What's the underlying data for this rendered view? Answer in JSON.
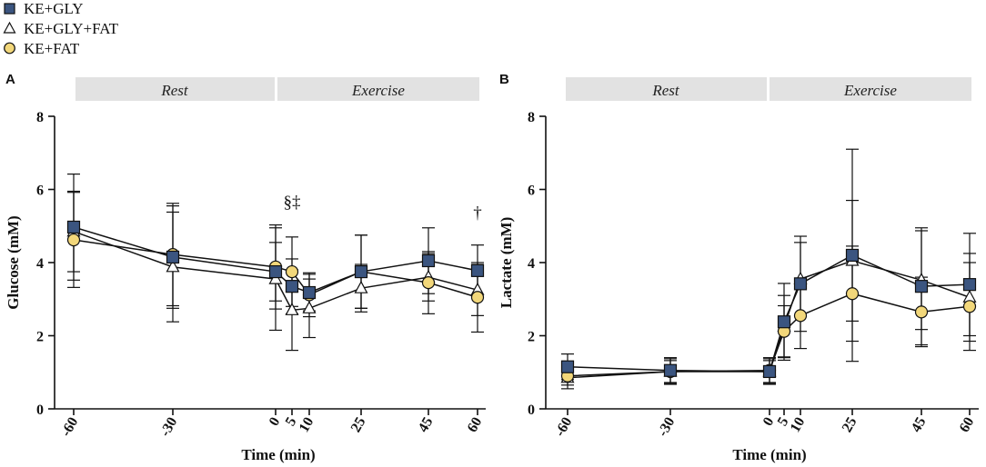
{
  "legend": {
    "items": [
      {
        "label": "KE+GLY",
        "marker": "square",
        "color": "#3b5580"
      },
      {
        "label": "KE+GLY+FAT",
        "marker": "triangle",
        "color": "#ffffff"
      },
      {
        "label": "KE+FAT",
        "marker": "circle",
        "color": "#f2d77a"
      }
    ]
  },
  "phases": {
    "rest": "Rest",
    "exercise": "Exercise"
  },
  "chart_data": [
    {
      "panel": "A",
      "type": "line",
      "xlabel": "Time (min)",
      "ylabel": "Glucose (mM)",
      "ylim": [
        0,
        8
      ],
      "yticks": [
        "0",
        "2",
        "4",
        "6",
        "8"
      ],
      "x": [
        -60,
        -30,
        0,
        5,
        10,
        25,
        45,
        60
      ],
      "xtick_labels": [
        "-60",
        "-30",
        "0",
        "5",
        "10",
        "25",
        "45",
        "60"
      ],
      "series": [
        {
          "name": "KE+GLY",
          "values": [
            4.97,
            4.15,
            3.75,
            3.35,
            3.18,
            3.75,
            4.05,
            3.78
          ],
          "err": [
            1.45,
            1.4,
            0.8,
            0.75,
            0.5,
            1.0,
            0.9,
            0.7
          ]
        },
        {
          "name": "KE+GLY+FAT",
          "values": [
            4.85,
            3.88,
            3.55,
            2.7,
            2.75,
            3.3,
            3.6,
            3.25
          ],
          "err": [
            1.1,
            1.5,
            1.4,
            1.1,
            0.8,
            0.65,
            0.65,
            0.7
          ]
        },
        {
          "name": "KE+FAT",
          "values": [
            4.62,
            4.22,
            3.88,
            3.75,
            3.12,
            3.75,
            3.45,
            3.05
          ],
          "err": [
            1.3,
            1.4,
            1.15,
            0.95,
            0.6,
            1.0,
            0.85,
            0.95
          ]
        }
      ],
      "annotations": [
        {
          "x": 5,
          "y": 5.5,
          "text": "§‡"
        },
        {
          "x": 60,
          "y": 5.2,
          "text": "†"
        }
      ]
    },
    {
      "panel": "B",
      "type": "line",
      "xlabel": "Time (min)",
      "ylabel": "Lactate (mM)",
      "ylim": [
        0,
        8
      ],
      "yticks": [
        "0",
        "2",
        "4",
        "6",
        "8"
      ],
      "x": [
        -60,
        -30,
        0,
        5,
        10,
        25,
        45,
        60
      ],
      "xtick_labels": [
        "-60",
        "-30",
        "0",
        "5",
        "10",
        "25",
        "45",
        "60"
      ],
      "series": [
        {
          "name": "KE+GLY",
          "values": [
            1.15,
            1.05,
            1.02,
            2.38,
            3.42,
            4.2,
            3.35,
            3.4
          ],
          "err": [
            0.35,
            0.35,
            0.35,
            1.05,
            1.3,
            2.9,
            1.6,
            1.4
          ]
        },
        {
          "name": "KE+GLY+FAT",
          "values": [
            0.85,
            1.02,
            1.02,
            2.25,
            3.55,
            4.05,
            3.52,
            3.05
          ],
          "err": [
            0.3,
            0.3,
            0.3,
            0.85,
            1.0,
            1.65,
            1.35,
            1.2
          ]
        },
        {
          "name": "KE+FAT",
          "values": [
            0.9,
            1.02,
            1.05,
            2.12,
            2.55,
            3.15,
            2.65,
            2.8
          ],
          "err": [
            0.25,
            0.35,
            0.35,
            0.7,
            0.9,
            1.3,
            0.95,
            1.2
          ]
        }
      ],
      "annotations": []
    }
  ]
}
